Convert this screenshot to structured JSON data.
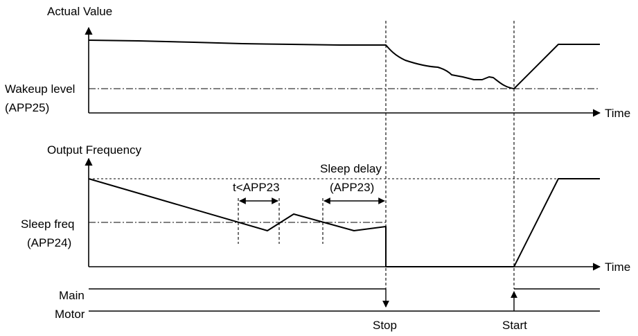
{
  "panel_actual": {
    "title": "Actual Value",
    "level_label_1": "Wakeup level",
    "level_label_2": "(APP25)",
    "time_label": "Time"
  },
  "panel_output": {
    "title": "Output Frequency",
    "level_label_1": "Sleep freq",
    "level_label_2": "(APP24)",
    "time_label": "Time",
    "interval_short": "t<APP23",
    "interval_delay_1": "Sleep delay",
    "interval_delay_2": "(APP23)"
  },
  "panel_motor": {
    "main_label": "Main",
    "motor_label": "Motor",
    "stop_label": "Stop",
    "start_label": "Start"
  }
}
